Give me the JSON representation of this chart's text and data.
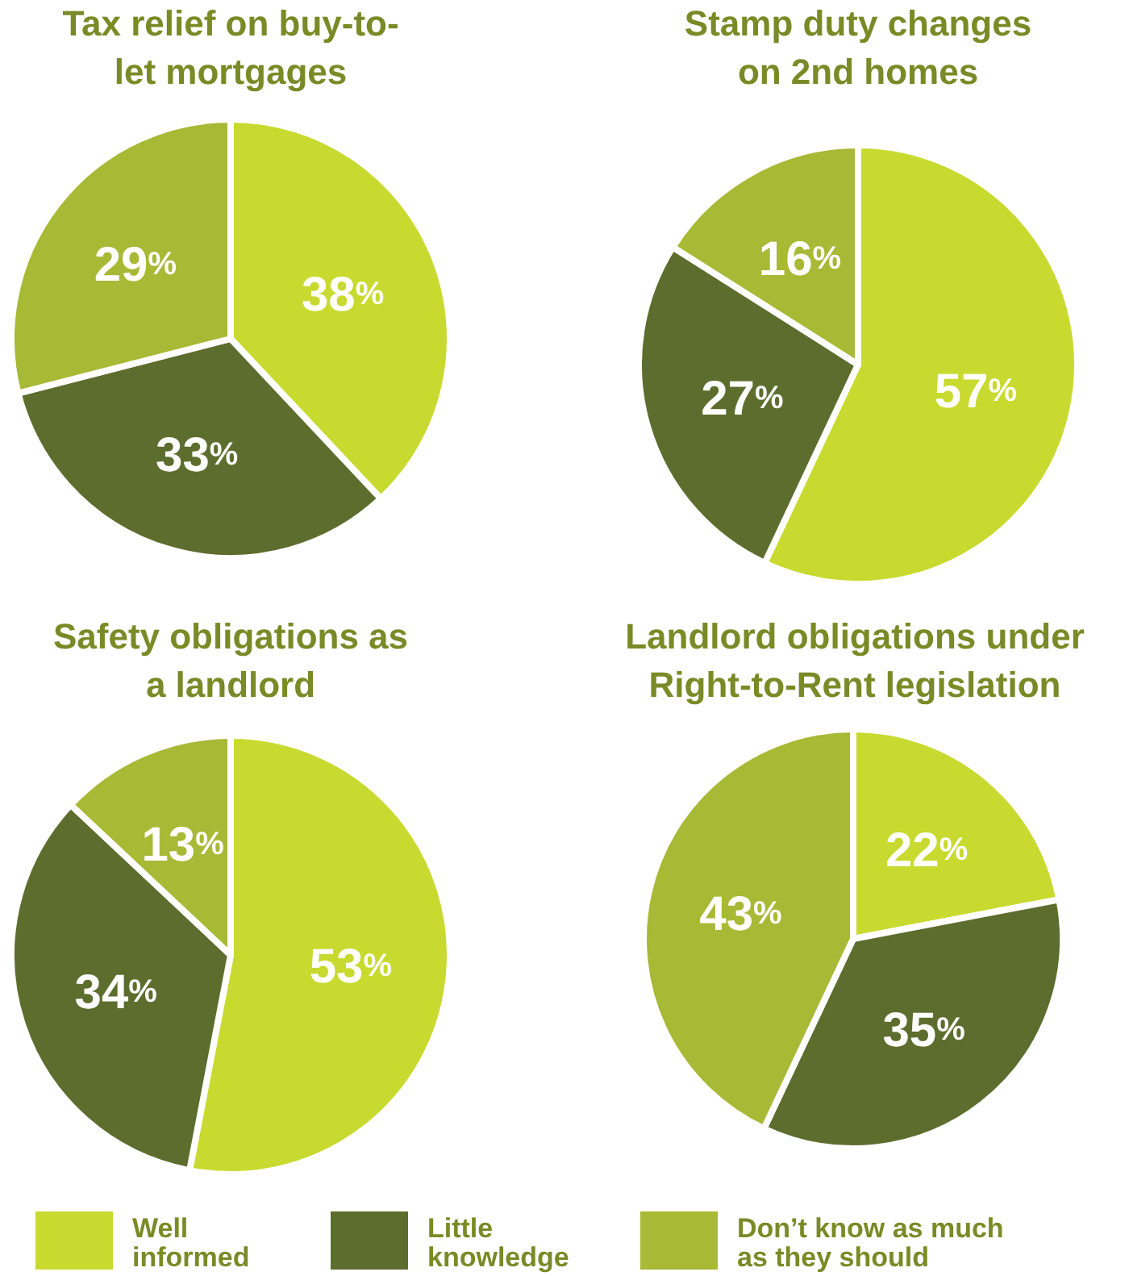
{
  "chart_data": [
    {
      "type": "pie",
      "title": "Tax relief on buy-to-\nlet mortgages",
      "categories": [
        "Well informed",
        "Little knowledge",
        "Don’t know as much as they should"
      ],
      "values": [
        38,
        33,
        29
      ],
      "colors": [
        "#c8da2f",
        "#5d6d2d",
        "#a7b935"
      ],
      "value_labels": [
        "38%",
        "33%",
        "29%"
      ],
      "legend": "bottom"
    },
    {
      "type": "pie",
      "title": "Stamp duty changes\non 2nd homes",
      "values": [
        57,
        27,
        16
      ],
      "colors": [
        "#c8da2f",
        "#5d6d2d",
        "#a7b935"
      ],
      "value_labels": [
        "57%",
        "27%",
        "16%"
      ]
    },
    {
      "type": "pie",
      "title": "Safety obligations as\na landlord",
      "values": [
        53,
        34,
        13
      ],
      "colors": [
        "#c8da2f",
        "#5d6d2d",
        "#a7b935"
      ],
      "value_labels": [
        "53%",
        "34%",
        "13%"
      ]
    },
    {
      "type": "pie",
      "title": "Landlord obligations under\nRight-to-Rent legislation",
      "values": [
        22,
        35,
        43
      ],
      "colors": [
        "#c8da2f",
        "#5d6d2d",
        "#a7b935"
      ],
      "value_labels": [
        "22%",
        "35%",
        "43%"
      ]
    }
  ]
}
